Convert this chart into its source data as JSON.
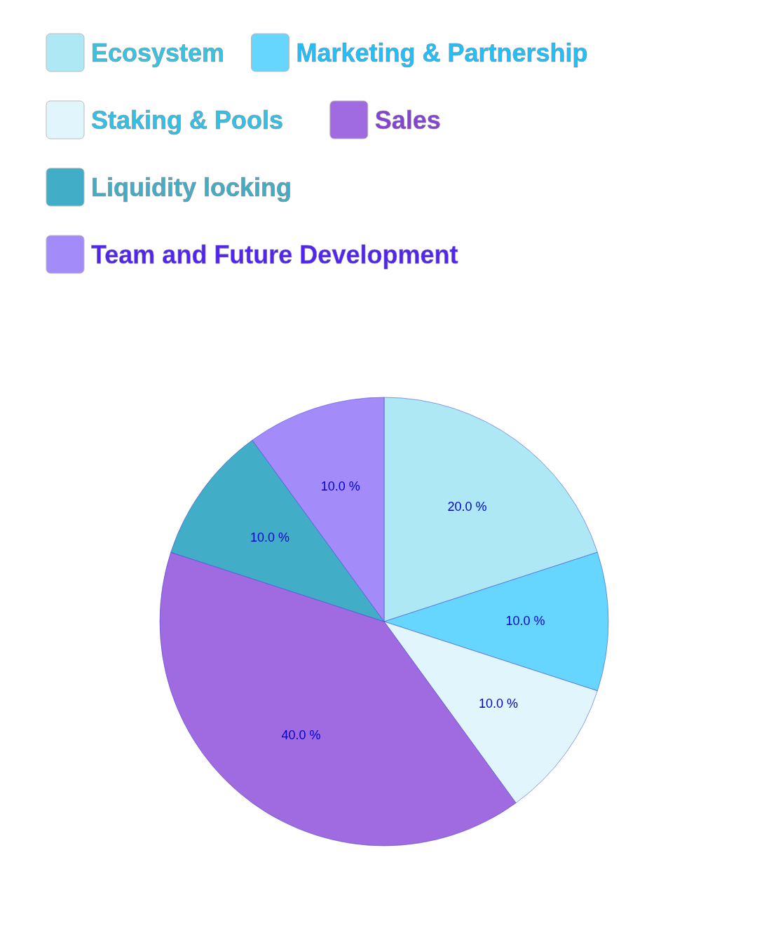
{
  "chart_data": {
    "type": "pie",
    "categories": [
      "Ecosystem",
      "Marketing & Partnership",
      "Staking & Pools",
      "Sales",
      "Liquidity locking",
      "Team and Future Development"
    ],
    "values": [
      20,
      10,
      10,
      40,
      10,
      10
    ],
    "colors": [
      "#aee8f5",
      "#66d6ff",
      "#e0f6fc",
      "#a06ae0",
      "#42adc6",
      "#a38bfa"
    ],
    "value_labels": [
      "20.0 %",
      "10.0 %",
      "10.0 %",
      "40.0 %",
      "10.0 %",
      "10.0 %"
    ],
    "legend": "top"
  }
}
